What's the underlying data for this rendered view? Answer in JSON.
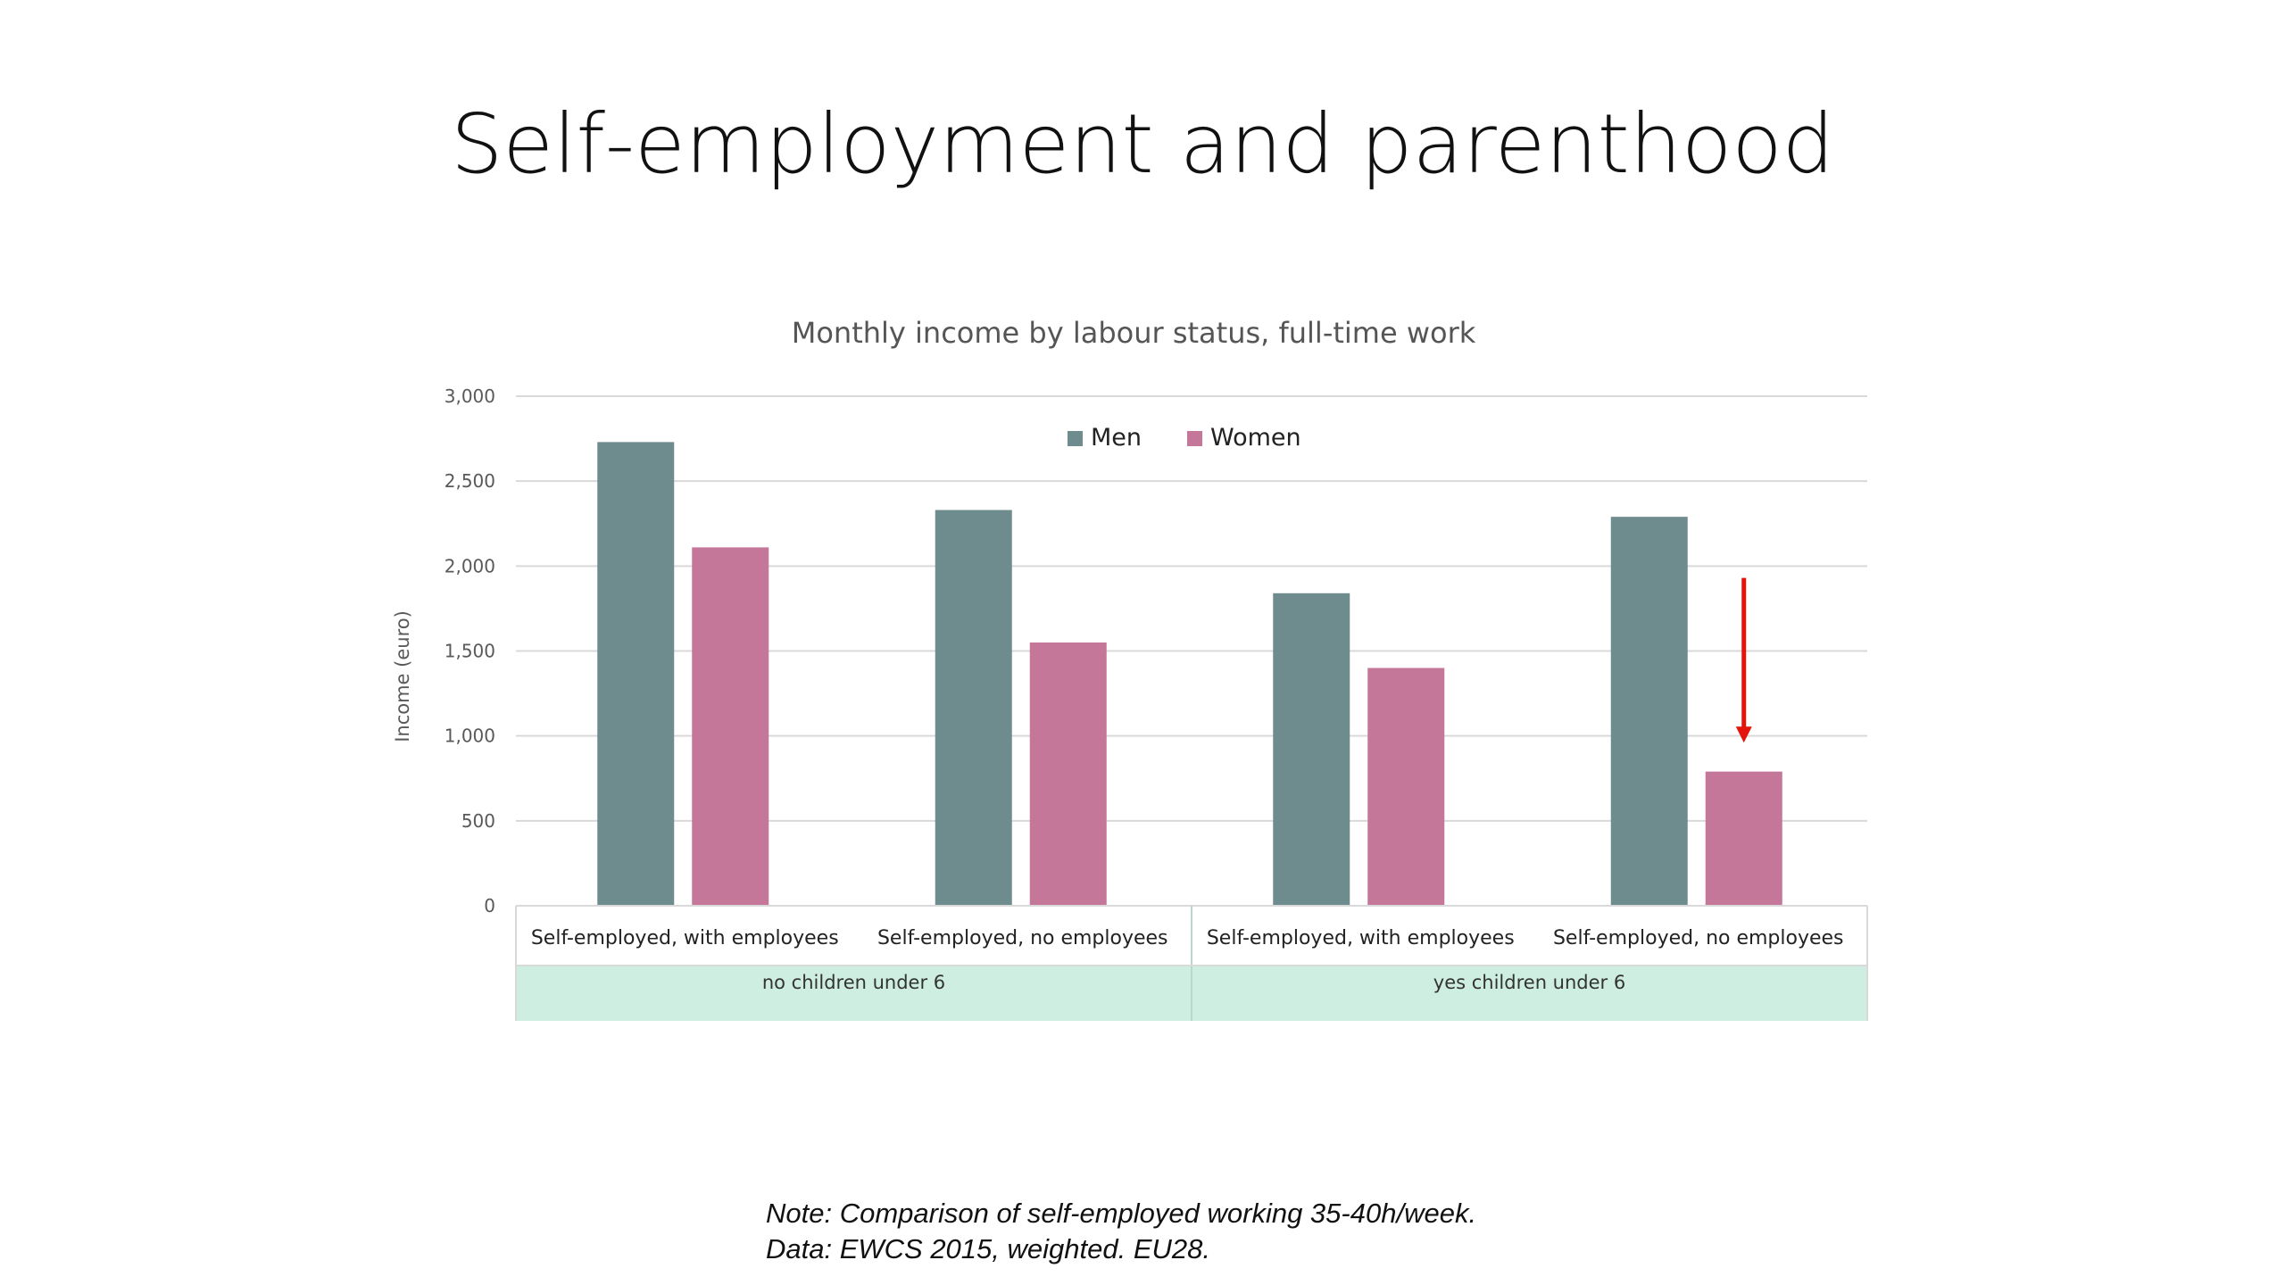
{
  "slide": {
    "title": "Self-employment and parenthood"
  },
  "chart_data": {
    "type": "bar",
    "title": "Monthly income by labour status, full-time work",
    "ylabel": "Income (euro)",
    "xlabel": "",
    "ylim": [
      0,
      3000
    ],
    "yticks": [
      "0",
      "500",
      "1,000",
      "1,500",
      "2,000",
      "2,500",
      "3,000"
    ],
    "ytick_values": [
      0,
      500,
      1000,
      1500,
      2000,
      2500,
      3000
    ],
    "grid": true,
    "legend_placement": "top-center",
    "categories": [
      "Self-employed, with employees",
      "Self-employed, no employees",
      "Self-employed, with employees",
      "Self-employed, no employees"
    ],
    "groups": [
      {
        "label": "no children under 6",
        "span": [
          0,
          1
        ]
      },
      {
        "label": "yes children under 6",
        "span": [
          2,
          3
        ]
      }
    ],
    "series": [
      {
        "name": "Men",
        "color": "#6e8c8d",
        "values": [
          2730,
          2330,
          1840,
          2290
        ]
      },
      {
        "name": "Women",
        "color": "#c47799",
        "values": [
          2110,
          1550,
          1400,
          790
        ]
      }
    ],
    "annotation": {
      "type": "arrow",
      "color": "#e3140c",
      "category_index": 3,
      "series": "Women",
      "from_value": 1930,
      "to_value": 960
    },
    "group_band_color": "#cdeee0"
  },
  "notes": {
    "line1": "Note: Comparison of self-employed working 35-40h/week.",
    "line2": "Data: EWCS 2015, weighted. EU28."
  }
}
